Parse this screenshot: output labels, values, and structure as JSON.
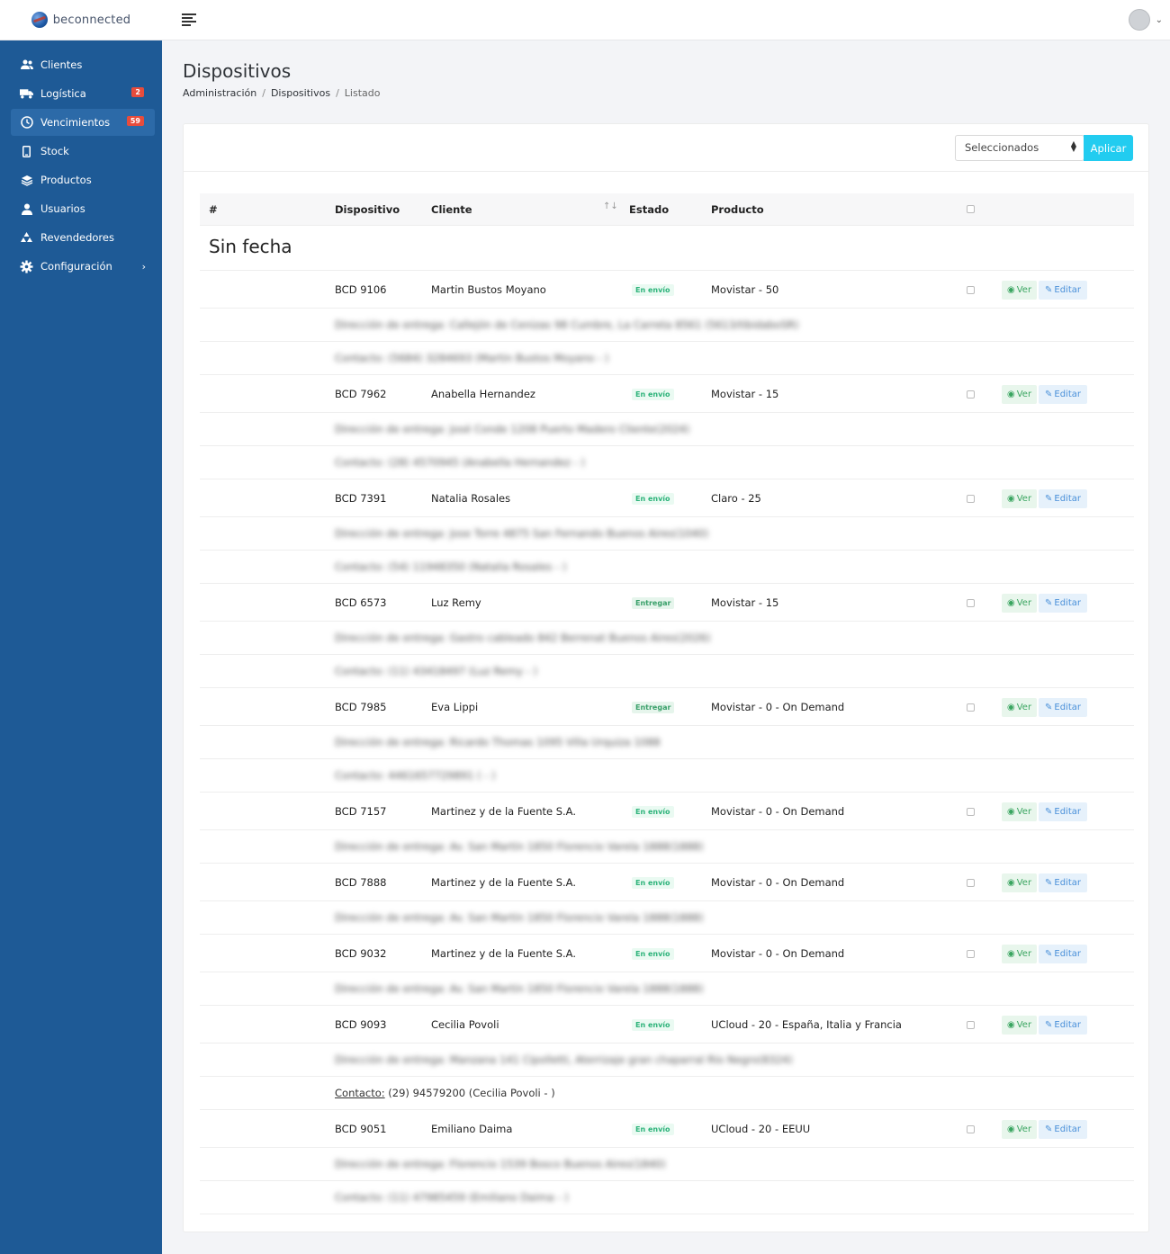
{
  "header": {
    "brand": "beconnected",
    "menu_icon": "hamburger-icon",
    "user_icon": "avatar",
    "user_chevron": "⌄"
  },
  "sidebar": {
    "items": [
      {
        "label": "Clientes",
        "icon": "users-icon"
      },
      {
        "label": "Logística",
        "icon": "truck-icon",
        "badge": "2"
      },
      {
        "label": "Vencimientos",
        "icon": "clock-icon",
        "badge": "59",
        "active": true
      },
      {
        "label": "Stock",
        "icon": "mobile-icon"
      },
      {
        "label": "Productos",
        "icon": "layers-icon"
      },
      {
        "label": "Usuarios",
        "icon": "user-icon"
      },
      {
        "label": "Revendedores",
        "icon": "recycle-icon"
      },
      {
        "label": "Configuración",
        "icon": "gear-icon",
        "arrow": "›"
      }
    ]
  },
  "page": {
    "title": "Dispositivos",
    "breadcrumb": [
      "Administración",
      "Dispositivos",
      "Listado"
    ]
  },
  "toolbar": {
    "select_value": "Seleccionados",
    "apply_label": "Aplicar"
  },
  "table": {
    "headers": {
      "num": "#",
      "dispositivo": "Dispositivo",
      "cliente": "Cliente",
      "estado": "Estado",
      "producto": "Producto"
    },
    "group_title": "Sin fecha",
    "ver_label": "Ver",
    "edit_label": "Editar",
    "rows": [
      {
        "dispositivo": "BCD 9106",
        "cliente": "Martin Bustos Moyano",
        "estado": "En envío",
        "estado_type": "envio",
        "producto": "Movistar - 50",
        "details": [
          {
            "text": "Dirección de entrega: Callejón de Cenizas 98 Cumbre, La Carreta 8561 (5613/tibidaboSR)",
            "blur": true
          },
          {
            "text": "Contacto: (5684) 3284693 (Martin Bustos Moyano - )",
            "blur": true
          }
        ]
      },
      {
        "dispositivo": "BCD 7962",
        "cliente": "Anabella Hernandez",
        "estado": "En envío",
        "estado_type": "envio",
        "producto": "Movistar - 15",
        "details": [
          {
            "text": "Dirección de entrega: José Conde 1208 Puerto Madero Cliente(2024)",
            "blur": true
          },
          {
            "text": "Contacto: (28) 4570945 (Anabella Hernandez - )",
            "blur": true
          }
        ]
      },
      {
        "dispositivo": "BCD 7391",
        "cliente": "Natalia Rosales",
        "estado": "En envío",
        "estado_type": "envio",
        "producto": "Claro - 25",
        "details": [
          {
            "text": "Dirección de entrega: Jose Torre 4875 San Fernando Buenos Aires(1040)",
            "blur": true
          },
          {
            "text": "Contacto: (54) 11948350 (Natalia Rosales - )",
            "blur": true
          }
        ]
      },
      {
        "dispositivo": "BCD 6573",
        "cliente": "Luz Remy",
        "estado": "Entregar",
        "estado_type": "entregar",
        "producto": "Movistar - 15",
        "details": [
          {
            "text": "Dirección de entrega: Gastro cableado 842 Berrenat Buenos Aires(2026)",
            "blur": true
          },
          {
            "text": "Contacto: (11) 43418497 (Luz Remy - )",
            "blur": true
          }
        ]
      },
      {
        "dispositivo": "BCD 7985",
        "cliente": "Eva Lippi",
        "estado": "Entregar",
        "estado_type": "entregar",
        "producto": "Movistar - 0 - On Demand",
        "details": [
          {
            "text": "Dirección de entrega: Ricardo Thomas 1095 Villa Urquiza 1088",
            "blur": true
          },
          {
            "text": "Contacto: 4461657729891 ( - )",
            "blur": true
          }
        ]
      },
      {
        "dispositivo": "BCD 7157",
        "cliente": "Martinez y de la Fuente S.A.",
        "estado": "En envío",
        "estado_type": "envio",
        "producto": "Movistar - 0 - On Demand",
        "details": [
          {
            "text": "Dirección de entrega: Av. San Martín 1850 Florencio Varela 1888(1888)",
            "blur": true
          }
        ]
      },
      {
        "dispositivo": "BCD 7888",
        "cliente": "Martinez y de la Fuente S.A.",
        "estado": "En envío",
        "estado_type": "envio",
        "producto": "Movistar - 0 - On Demand",
        "details": [
          {
            "text": "Dirección de entrega: Av. San Martín 1850 Florencio Varela 1888(1888)",
            "blur": true
          }
        ]
      },
      {
        "dispositivo": "BCD 9032",
        "cliente": "Martinez y de la Fuente S.A.",
        "estado": "En envío",
        "estado_type": "envio",
        "producto": "Movistar - 0 - On Demand",
        "details": [
          {
            "text": "Dirección de entrega: Av. San Martín 1850 Florencio Varela 1888(1888)",
            "blur": true
          }
        ]
      },
      {
        "dispositivo": "BCD 9093",
        "cliente": "Cecilia Povoli",
        "estado": "En envío",
        "estado_type": "envio",
        "producto": "UCloud - 20 - España, Italia y Francia",
        "details": [
          {
            "text": "Dirección de entrega: Manzana 141 Cipolletti, Aterrizaje gran chaparral Río Negro(8324)",
            "blur": true
          },
          {
            "label": "Contacto:",
            "text": " (29) 94579200 (Cecilia Povoli - )",
            "blur": false
          }
        ]
      },
      {
        "dispositivo": "BCD 9051",
        "cliente": "Emiliano Daima",
        "estado": "En envío",
        "estado_type": "envio",
        "producto": "UCloud - 20 - EEUU",
        "details": [
          {
            "text": "Dirección de entrega: Florencio 1539 Bosco Buenos Aires(1840)",
            "blur": true
          },
          {
            "text": "Contacto: (11) 47985459 (Emiliano Daima - )",
            "blur": true
          }
        ]
      }
    ]
  }
}
